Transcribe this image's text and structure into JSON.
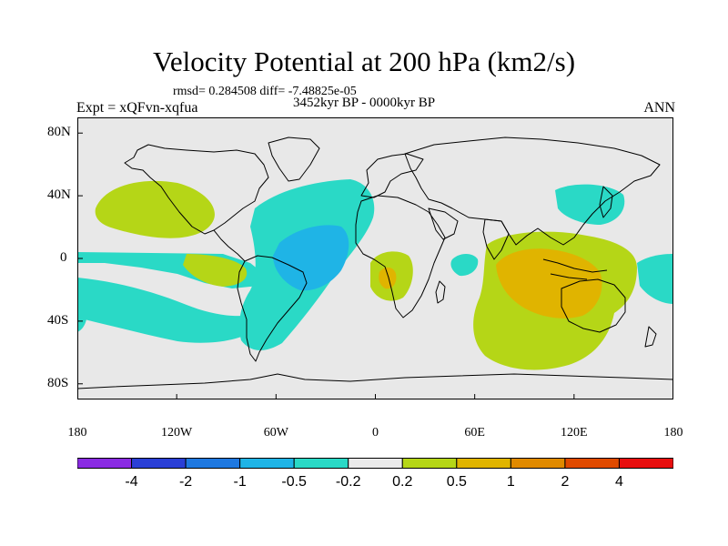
{
  "title": "Velocity Potential at 200 hPa (km2/s)",
  "stats": "rmsd= 0.284508 diff= -7.48825e-05",
  "experiment": "Expt = xQFvn-xqfua",
  "period": "3452kyr BP - 0000kyr BP",
  "season": "ANN",
  "lat_ticks": [
    {
      "value": 80,
      "label": "80N"
    },
    {
      "value": 40,
      "label": "40N"
    },
    {
      "value": 0,
      "label": "0"
    },
    {
      "value": -40,
      "label": "40S"
    },
    {
      "value": -80,
      "label": "80S"
    }
  ],
  "lon_ticks": [
    {
      "value": -180,
      "label": "180"
    },
    {
      "value": -120,
      "label": "120W"
    },
    {
      "value": -60,
      "label": "60W"
    },
    {
      "value": 0,
      "label": "0"
    },
    {
      "value": 60,
      "label": "60E"
    },
    {
      "value": 120,
      "label": "120E"
    },
    {
      "value": 180,
      "label": "180"
    }
  ],
  "colorbar": {
    "colors": [
      "#8a2be2",
      "#2a3fd6",
      "#1e78e0",
      "#1fb4e6",
      "#2ad9c6",
      "#eaeaea",
      "#b5d617",
      "#e0b400",
      "#e08a00",
      "#e04a00",
      "#e80f0f"
    ],
    "labels": [
      "-4",
      "-2",
      "-1",
      "-0.5",
      "-0.2",
      "0.2",
      "0.5",
      "1",
      "2",
      "4"
    ]
  },
  "field_colors": {
    "land_background": "#e8e8e8",
    "neg_02": "#2ad9c6",
    "neg_05": "#1fb4e6",
    "pos_02": "#b5d617",
    "pos_05": "#e0b400",
    "coast": "#000000"
  }
}
